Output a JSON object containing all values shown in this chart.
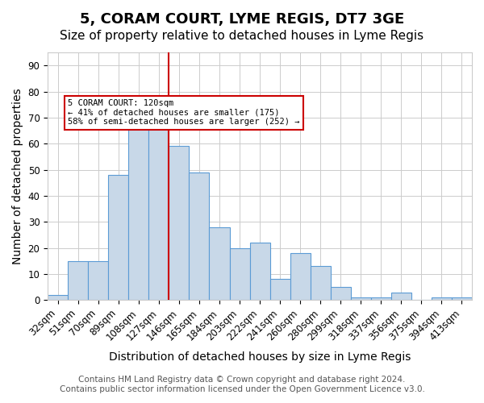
{
  "title": "5, CORAM COURT, LYME REGIS, DT7 3GE",
  "subtitle": "Size of property relative to detached houses in Lyme Regis",
  "xlabel": "Distribution of detached houses by size in Lyme Regis",
  "ylabel": "Number of detached properties",
  "footer_line1": "Contains HM Land Registry data © Crown copyright and database right 2024.",
  "footer_line2": "Contains public sector information licensed under the Open Government Licence v3.0.",
  "bin_labels": [
    "32sqm",
    "51sqm",
    "70sqm",
    "89sqm",
    "108sqm",
    "127sqm",
    "146sqm",
    "165sqm",
    "184sqm",
    "203sqm",
    "222sqm",
    "241sqm",
    "260sqm",
    "280sqm",
    "299sqm",
    "318sqm",
    "337sqm",
    "356sqm",
    "375sqm",
    "394sqm",
    "413sqm"
  ],
  "bar_heights": [
    2,
    15,
    15,
    48,
    66,
    73,
    59,
    49,
    28,
    20,
    22,
    8,
    18,
    13,
    5,
    1,
    1,
    3,
    0,
    1,
    1
  ],
  "bar_color": "#c8d8e8",
  "bar_edge_color": "#5b9bd5",
  "vline_x": 5.5,
  "vline_color": "#cc0000",
  "annotation_text": "5 CORAM COURT: 120sqm\n← 41% of detached houses are smaller (175)\n58% of semi-detached houses are larger (252) →",
  "annotation_box_color": "#cc0000",
  "ylim": [
    0,
    95
  ],
  "yticks": [
    0,
    10,
    20,
    30,
    40,
    50,
    60,
    70,
    80,
    90
  ],
  "grid_color": "#cccccc",
  "background_color": "#ffffff",
  "title_fontsize": 13,
  "subtitle_fontsize": 11,
  "axis_label_fontsize": 10,
  "tick_fontsize": 8.5,
  "footer_fontsize": 7.5
}
